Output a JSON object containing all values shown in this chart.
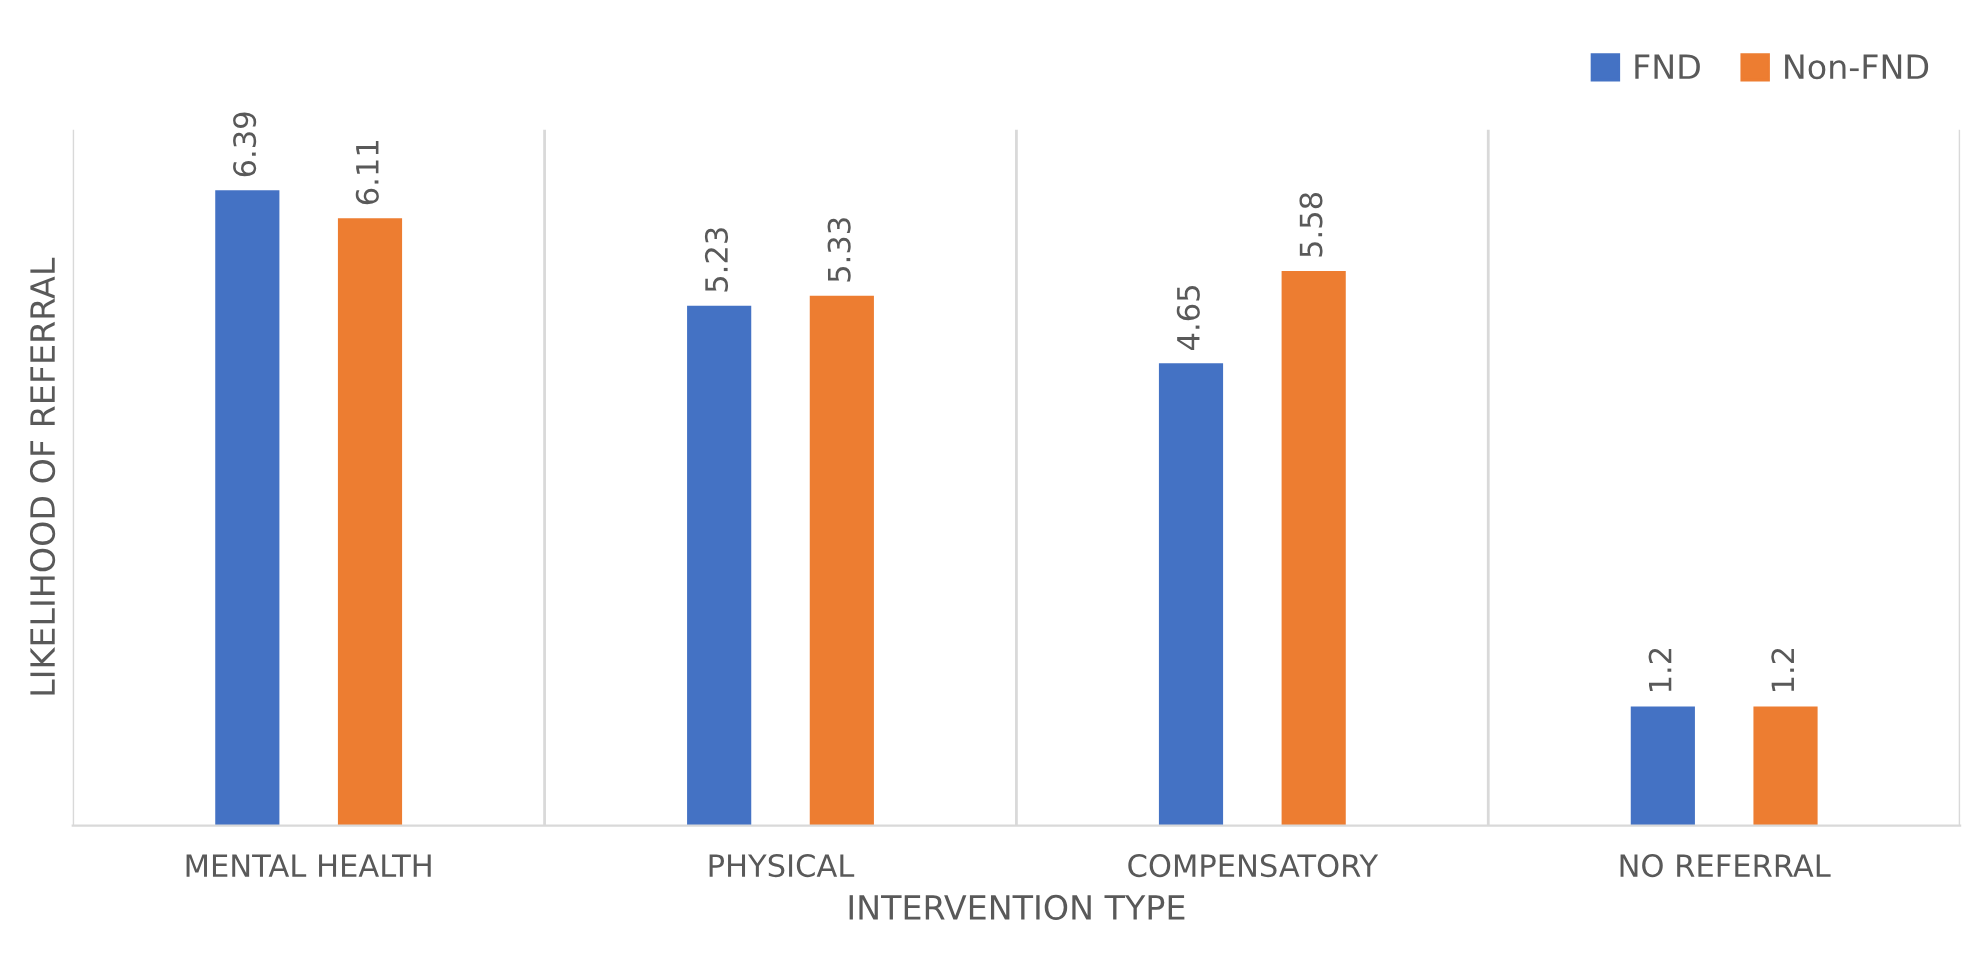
{
  "chart_data": {
    "type": "bar",
    "categories": [
      "MENTAL HEALTH",
      "PHYSICAL",
      "COMPENSATORY",
      "NO REFERRAL"
    ],
    "series": [
      {
        "name": "FND",
        "color": "#4472c4",
        "values": [
          6.39,
          5.23,
          4.65,
          1.2
        ]
      },
      {
        "name": "Non-FND",
        "color": "#ed7d31",
        "values": [
          6.11,
          5.33,
          5.58,
          1.2
        ]
      }
    ],
    "xlabel": "INTERVENTION TYPE",
    "ylabel": "LIKELIHOOD OF REFERRAL",
    "ylim": [
      0,
      7
    ],
    "tick_labels": "x",
    "grid": "x",
    "legend": "top right",
    "data_labels": true
  }
}
